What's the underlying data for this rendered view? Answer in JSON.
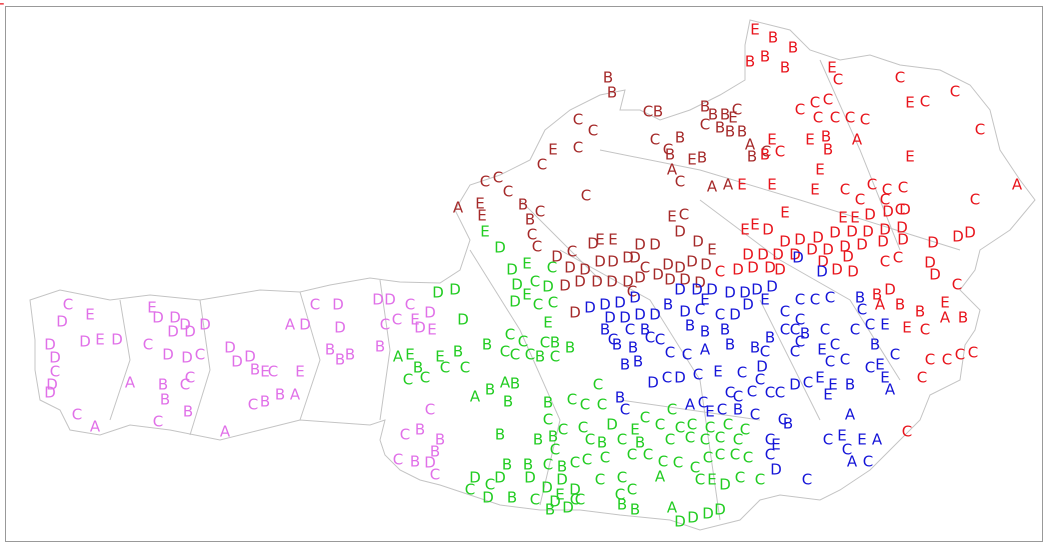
{
  "map": {
    "regions": [
      {
        "color": "#e070e8",
        "labels": [
          "C",
          "E",
          "D",
          "E",
          "D",
          "D",
          "D",
          "D",
          "D",
          "D",
          "D",
          "E",
          "D",
          "C",
          "D",
          "D",
          "C",
          "D",
          "D",
          "D",
          "C",
          "D",
          "D",
          "D",
          "D",
          "B",
          "E",
          "C",
          "C",
          "A",
          "B",
          "C",
          "B",
          "B",
          "C",
          "A",
          "C",
          "A",
          "A",
          "D",
          "C",
          "D",
          "D",
          "E",
          "B",
          "A",
          "B",
          "C",
          "B",
          "B",
          "B",
          "B",
          "D",
          "D",
          "C",
          "C",
          "C",
          "E",
          "D",
          "D",
          "E",
          "C",
          "B",
          "C",
          "B",
          "B",
          "D",
          "C",
          "B",
          "C"
        ]
      },
      {
        "color": "#a52a2a",
        "labels": [
          "B",
          "B",
          "C",
          "C",
          "C",
          "E",
          "C",
          "A",
          "C",
          "C",
          "C",
          "E",
          "E",
          "B",
          "C",
          "B",
          "C",
          "C",
          "C",
          "C",
          "B",
          "C",
          "B",
          "E",
          "B",
          "A",
          "C",
          "A",
          "A",
          "B",
          "B",
          "C",
          "B",
          "B",
          "C",
          "E",
          "B",
          "A",
          "B",
          "C",
          "B",
          "C",
          "B",
          "D",
          "C",
          "D",
          "E",
          "E",
          "D",
          "D",
          "D",
          "D",
          "D",
          "D",
          "D",
          "C",
          "D",
          "D",
          "D",
          "D",
          "D",
          "D",
          "D",
          "D",
          "D",
          "C",
          "E",
          "C",
          "D",
          "D",
          "D",
          "D",
          "D",
          "D",
          "E",
          "D",
          "D",
          "D"
        ]
      },
      {
        "color": "#e8141c",
        "labels": [
          "E",
          "B",
          "B",
          "B",
          "B",
          "B",
          "E",
          "C",
          "C",
          "C",
          "E",
          "C",
          "C",
          "C",
          "C",
          "C",
          "C",
          "C",
          "C",
          "E",
          "B",
          "B",
          "A",
          "E",
          "C",
          "B",
          "E",
          "E",
          "E",
          "E",
          "E",
          "C",
          "C",
          "C",
          "C",
          "C",
          "C",
          "C",
          "C",
          "A",
          "E",
          "E",
          "D",
          "D",
          "D",
          "E",
          "E",
          "E",
          "D",
          "D",
          "D",
          "D",
          "D",
          "D",
          "D",
          "D",
          "D",
          "D",
          "D",
          "D",
          "D",
          "D",
          "D",
          "D",
          "D",
          "D",
          "D",
          "D",
          "D",
          "D",
          "D",
          "C",
          "C",
          "D",
          "C",
          "C",
          "C",
          "D",
          "D",
          "D",
          "D",
          "D",
          "D",
          "D",
          "D",
          "D",
          "B",
          "A",
          "B",
          "B",
          "E",
          "A",
          "B",
          "E",
          "C",
          "C",
          "C",
          "C",
          "C",
          "C",
          "C",
          "E"
        ]
      },
      {
        "color": "#1515d8",
        "labels": [
          "D",
          "D",
          "D",
          "D",
          "D",
          "D",
          "D",
          "D",
          "D",
          "D",
          "D",
          "D",
          "D",
          "D",
          "D",
          "D",
          "D",
          "B",
          "D",
          "C",
          "E",
          "C",
          "D",
          "E",
          "D",
          "C",
          "B",
          "C",
          "B",
          "C",
          "B",
          "B",
          "C",
          "C",
          "B",
          "B",
          "B",
          "C",
          "C",
          "C",
          "B",
          "C",
          "C",
          "B",
          "C",
          "B",
          "C",
          "C",
          "C",
          "C",
          "B",
          "E",
          "C",
          "E",
          "E",
          "A",
          "B",
          "B",
          "C",
          "C",
          "A",
          "B",
          "B",
          "C",
          "C",
          "C",
          "E",
          "C",
          "C",
          "C",
          "C",
          "D",
          "C",
          "D",
          "C",
          "E",
          "C",
          "D",
          "D",
          "C",
          "E",
          "E",
          "B",
          "C",
          "C",
          "C",
          "C",
          "C",
          "E",
          "A",
          "B",
          "C",
          "A",
          "C",
          "E",
          "C",
          "C",
          "B",
          "C",
          "C",
          "B",
          "C",
          "E",
          "C",
          "D",
          "C",
          "E",
          "C",
          "E",
          "A",
          "A",
          "C",
          "C"
        ]
      },
      {
        "color": "#22cc22",
        "labels": [
          "D",
          "D",
          "D",
          "D",
          "E",
          "D",
          "D",
          "E",
          "C",
          "D",
          "C",
          "C",
          "E",
          "E",
          "C",
          "D",
          "B",
          "A",
          "E",
          "B",
          "C",
          "C",
          "E",
          "C",
          "C",
          "B",
          "B",
          "C",
          "C",
          "C",
          "B",
          "C",
          "C",
          "C",
          "C",
          "B",
          "A",
          "B",
          "A",
          "B",
          "B",
          "C",
          "B",
          "C",
          "C",
          "C",
          "C",
          "B",
          "B",
          "C",
          "C",
          "C",
          "B",
          "C",
          "D",
          "E",
          "C",
          "C",
          "C",
          "C",
          "B",
          "C",
          "B",
          "C",
          "C",
          "C",
          "C",
          "C",
          "C",
          "C",
          "C",
          "C",
          "C",
          "B",
          "C",
          "B",
          "B",
          "D",
          "C",
          "D",
          "C",
          "D",
          "B",
          "D",
          "D",
          "D",
          "D",
          "D",
          "D",
          "B",
          "C",
          "C",
          "E",
          "C",
          "C",
          "C",
          "C",
          "C",
          "C",
          "C",
          "C",
          "C",
          "C",
          "C",
          "C",
          "C",
          "C",
          "A",
          "E",
          "C",
          "D",
          "C",
          "C",
          "B",
          "B",
          "A",
          "D",
          "D",
          "D",
          "D",
          "C",
          "C"
        ]
      }
    ]
  }
}
